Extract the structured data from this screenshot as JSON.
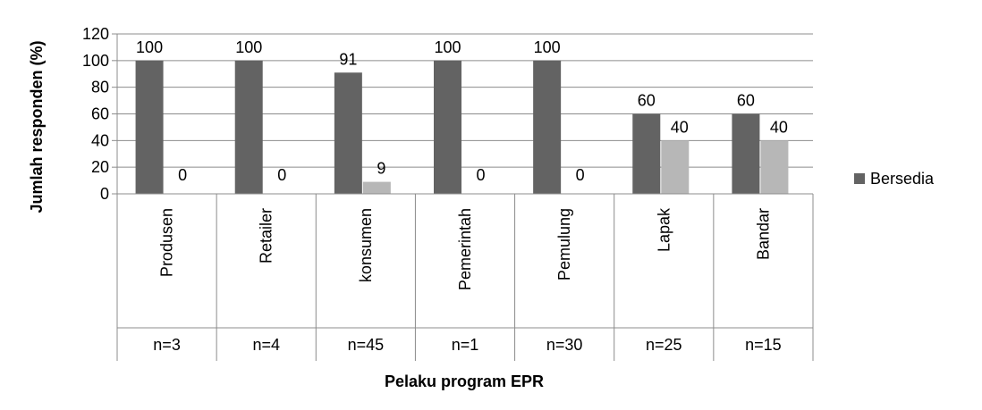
{
  "chart_data": {
    "type": "bar",
    "categories": [
      "Produsen",
      "Retailer",
      "konsumen",
      "Pemerintah",
      "Pemulung",
      "Lapak",
      "Bandar"
    ],
    "sample_sizes": [
      "n=3",
      "n=4",
      "n=45",
      "n=1",
      "n=30",
      "n=25",
      "n=15"
    ],
    "series": [
      {
        "name": "Bersedia",
        "values": [
          100,
          100,
          91,
          100,
          100,
          60,
          60
        ],
        "color": "#636363"
      },
      {
        "values": [
          0,
          0,
          9,
          0,
          0,
          40,
          40
        ],
        "color": "#b7b7b7"
      }
    ],
    "xlabel": "Pelaku program EPR",
    "ylabel": "Jumlah responden (%)",
    "ylim": [
      0,
      120
    ],
    "yticks": [
      0,
      20,
      40,
      60,
      80,
      100,
      120
    ],
    "grid": true,
    "legend_position": "right"
  }
}
